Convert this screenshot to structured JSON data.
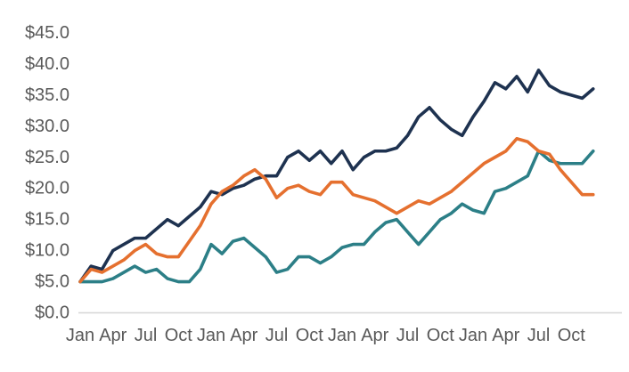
{
  "chart_data": {
    "type": "line",
    "title": "",
    "xlabel": "",
    "ylabel": "",
    "gridlines": false,
    "legend_position": "none",
    "markers": "none",
    "x_axis": {
      "unit": "month",
      "points_total": 48,
      "tick_labels": [
        "Jan",
        "Apr",
        "Jul",
        "Oct",
        "Jan",
        "Apr",
        "Jul",
        "Oct",
        "Jan",
        "Apr",
        "Jul",
        "Oct",
        "Jan",
        "Apr",
        "Jul",
        "Oct"
      ],
      "tick_month_indices": [
        0,
        3,
        6,
        9,
        12,
        15,
        18,
        21,
        24,
        27,
        30,
        33,
        36,
        39,
        42,
        45
      ]
    },
    "y_axis": {
      "tick_labels": [
        "$45.0",
        "$40.0",
        "$35.0",
        "$30.0",
        "$25.0",
        "$20.0",
        "$15.0",
        "$10.0",
        "$5.0",
        "$0.0"
      ],
      "tick_values": [
        45,
        40,
        35,
        30,
        25,
        20,
        15,
        10,
        5,
        0
      ],
      "ylim": [
        0,
        47
      ]
    },
    "series": [
      {
        "name": "navy-series",
        "color": "#1e3250",
        "values": [
          5,
          7.5,
          7,
          10,
          11,
          12,
          12,
          13.5,
          15,
          14,
          15.5,
          17,
          19.5,
          19,
          20,
          20.5,
          21.5,
          22,
          22,
          25,
          26,
          24.5,
          26,
          24,
          26,
          23,
          25,
          26,
          26,
          26.5,
          28.5,
          31.5,
          33,
          31,
          29.5,
          28.5,
          31.5,
          34,
          37,
          36,
          38,
          35.5,
          39,
          36.5,
          35.5,
          35,
          34.5,
          36
        ]
      },
      {
        "name": "teal-series",
        "color": "#2c7f87",
        "values": [
          5,
          5,
          5,
          5.5,
          6.5,
          7.5,
          6.5,
          7,
          5.5,
          5,
          5,
          7,
          11,
          9.5,
          11.5,
          12,
          10.5,
          9,
          6.5,
          7,
          9,
          9,
          8,
          9,
          10.5,
          11,
          11,
          13,
          14.5,
          15,
          13,
          11,
          13,
          15,
          16,
          17.5,
          16.5,
          16,
          19.5,
          20,
          21,
          22,
          26,
          24.5,
          24,
          24,
          24,
          26
        ]
      },
      {
        "name": "orange-series",
        "color": "#e5702f",
        "values": [
          5,
          7,
          6.5,
          7.5,
          8.5,
          10,
          11,
          9.5,
          9,
          9,
          11.5,
          14,
          17.5,
          19.5,
          20.5,
          22,
          23,
          21.5,
          18.5,
          20,
          20.5,
          19.5,
          19,
          21,
          21,
          19,
          18.5,
          18,
          17,
          16,
          17,
          18,
          17.5,
          18.5,
          19.5,
          21,
          22.5,
          24,
          25,
          26,
          28,
          27.5,
          26,
          25.5,
          23,
          21,
          19,
          19
        ]
      }
    ],
    "style": {
      "axis_text_color": "#595959",
      "axis_line_color": "#d6d6d6",
      "background_color": "#ffffff",
      "line_width": 3.6,
      "font_size_px": 20
    }
  }
}
